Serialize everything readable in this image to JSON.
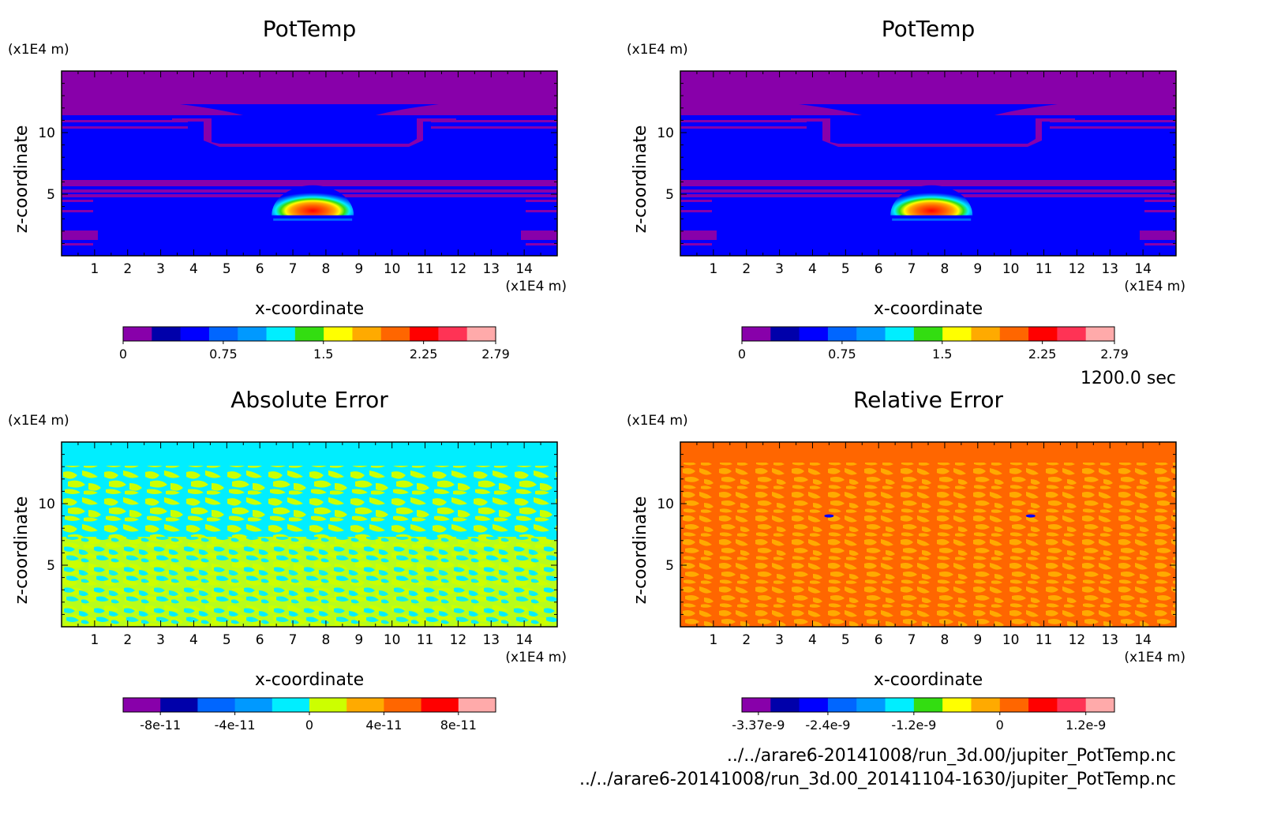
{
  "footer": {
    "time_label": "1200.0 sec",
    "file_1": "../../arare6-20141008/run_3d.00/jupiter_PotTemp.nc",
    "file_2": "../../arare6-20141008/run_3d.00_20141104-1630/jupiter_PotTemp.nc"
  },
  "chart_data": [
    {
      "type": "heatmap",
      "title": "PotTemp",
      "xlabel": "x-coordinate",
      "ylabel": "z-coordinate",
      "xunit": "(x1E4 m)",
      "yunit": "(x1E4 m)",
      "xlim": [
        0,
        15
      ],
      "ylim": [
        0,
        15
      ],
      "xticks": [
        1,
        2,
        3,
        4,
        5,
        6,
        7,
        8,
        9,
        10,
        11,
        12,
        13,
        14
      ],
      "yticks": [
        5,
        10
      ],
      "field": "warm thermal bubble centered near x=7.6, z=4",
      "colorbar": {
        "colors": [
          "#8800aa",
          "#0000aa",
          "#0000ff",
          "#0066ff",
          "#0099ff",
          "#00eeff",
          "#33dd11",
          "#ffff00",
          "#ffaa00",
          "#ff6600",
          "#ff0000",
          "#ff3355",
          "#ffaaaa"
        ],
        "labels": [
          "0",
          "0.75",
          "1.5",
          "2.25",
          "2.79"
        ],
        "label_values": [
          0,
          0.75,
          1.5,
          2.25,
          2.79
        ],
        "min": 0,
        "max": 2.79
      }
    },
    {
      "type": "heatmap",
      "title": "PotTemp",
      "xlabel": "x-coordinate",
      "ylabel": "z-coordinate",
      "xunit": "(x1E4 m)",
      "yunit": "(x1E4 m)",
      "xlim": [
        0,
        15
      ],
      "ylim": [
        0,
        15
      ],
      "xticks": [
        1,
        2,
        3,
        4,
        5,
        6,
        7,
        8,
        9,
        10,
        11,
        12,
        13,
        14
      ],
      "yticks": [
        5,
        10
      ],
      "field": "warm thermal bubble centered near x=7.6, z=4",
      "colorbar": {
        "colors": [
          "#8800aa",
          "#0000aa",
          "#0000ff",
          "#0066ff",
          "#0099ff",
          "#00eeff",
          "#33dd11",
          "#ffff00",
          "#ffaa00",
          "#ff6600",
          "#ff0000",
          "#ff3355",
          "#ffaaaa"
        ],
        "labels": [
          "0",
          "0.75",
          "1.5",
          "2.25",
          "2.79"
        ],
        "label_values": [
          0,
          0.75,
          1.5,
          2.25,
          2.79
        ],
        "min": 0,
        "max": 2.79
      }
    },
    {
      "type": "heatmap",
      "title": "Absolute Error",
      "xlabel": "x-coordinate",
      "ylabel": "z-coordinate",
      "xunit": "(x1E4 m)",
      "yunit": "(x1E4 m)",
      "xlim": [
        0,
        15
      ],
      "ylim": [
        0,
        15
      ],
      "xticks": [
        1,
        2,
        3,
        4,
        5,
        6,
        7,
        8,
        9,
        10,
        11,
        12,
        13,
        14
      ],
      "yticks": [
        5,
        10
      ],
      "field": "noise mixing cyan and yellow-green",
      "colorbar": {
        "colors": [
          "#8800aa",
          "#0000aa",
          "#0066ff",
          "#0099ff",
          "#00eeff",
          "#ccff00",
          "#ffaa00",
          "#ff6600",
          "#ff0000",
          "#ffaaaa"
        ],
        "labels": [
          "-8e-11",
          "-4e-11",
          "0",
          "4e-11",
          "8e-11"
        ],
        "label_values": [
          -8e-11,
          -4e-11,
          0,
          4e-11,
          8e-11
        ],
        "min": -1e-10,
        "max": 1e-10
      }
    },
    {
      "type": "heatmap",
      "title": "Relative Error",
      "xlabel": "x-coordinate",
      "ylabel": "z-coordinate",
      "xunit": "(x1E4 m)",
      "yunit": "(x1E4 m)",
      "xlim": [
        0,
        15
      ],
      "ylim": [
        0,
        15
      ],
      "xticks": [
        1,
        2,
        3,
        4,
        5,
        6,
        7,
        8,
        9,
        10,
        11,
        12,
        13,
        14
      ],
      "yticks": [
        5,
        10
      ],
      "field": "noise mixing dark orange and orange",
      "colorbar": {
        "colors": [
          "#8800aa",
          "#0000aa",
          "#0000ff",
          "#0066ff",
          "#0099ff",
          "#00eeff",
          "#33dd11",
          "#ffff00",
          "#ffaa00",
          "#ff6600",
          "#ff0000",
          "#ff3355",
          "#ffaaaa"
        ],
        "labels": [
          "-3.37e-9",
          "-2.4e-9",
          "-1.2e-9",
          "0",
          "1.2e-9"
        ],
        "label_values": [
          -3.37e-09,
          -2.4e-09,
          -1.2e-09,
          0,
          1.2e-09
        ],
        "min": -3.6e-09,
        "max": 1.6e-09
      }
    }
  ]
}
